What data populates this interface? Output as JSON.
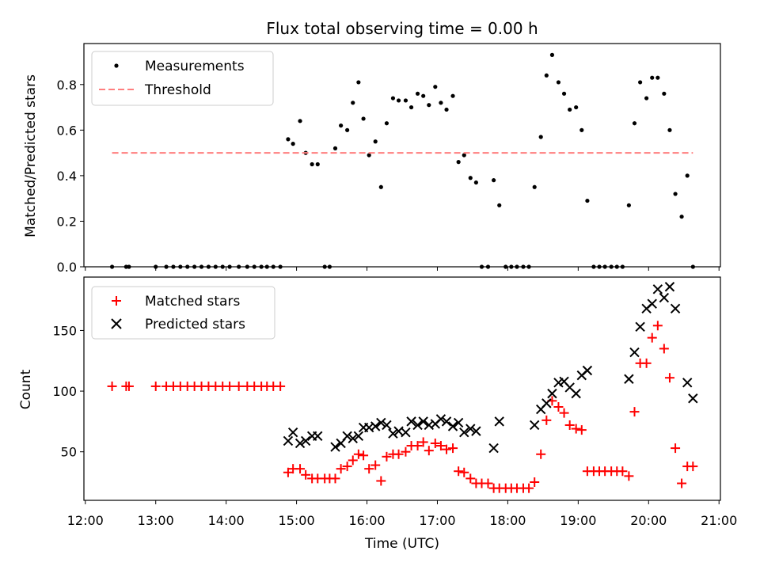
{
  "figure": {
    "title": "Flux total observing time = 0.00 h",
    "xlabel": "Time (UTC)",
    "xticks": [
      "12:00",
      "13:00",
      "14:00",
      "15:00",
      "16:00",
      "17:00",
      "18:00",
      "19:00",
      "20:00",
      "21:00"
    ]
  },
  "chart_data": [
    {
      "type": "scatter",
      "ylabel": "Matched/Predicted stars",
      "xlim": [
        11.98,
        21.02
      ],
      "ylim": [
        0,
        0.98
      ],
      "yticks": [
        "0.0",
        "0.2",
        "0.4",
        "0.6",
        "0.8"
      ],
      "legend_position": "top-left",
      "series": [
        {
          "name": "Measurements",
          "marker": "dot",
          "color": "#000000",
          "points": [
            [
              12.38,
              0
            ],
            [
              12.58,
              0
            ],
            [
              12.62,
              0
            ],
            [
              13.0,
              0
            ],
            [
              13.15,
              0
            ],
            [
              13.25,
              0
            ],
            [
              13.35,
              0
            ],
            [
              13.45,
              0
            ],
            [
              13.55,
              0
            ],
            [
              13.65,
              0
            ],
            [
              13.75,
              0
            ],
            [
              13.85,
              0
            ],
            [
              13.95,
              0
            ],
            [
              14.05,
              0
            ],
            [
              14.18,
              0
            ],
            [
              14.3,
              0
            ],
            [
              14.4,
              0
            ],
            [
              14.5,
              0
            ],
            [
              14.58,
              0
            ],
            [
              14.67,
              0
            ],
            [
              14.77,
              0
            ],
            [
              14.88,
              0.56
            ],
            [
              14.95,
              0.54
            ],
            [
              15.05,
              0.64
            ],
            [
              15.13,
              0.5
            ],
            [
              15.22,
              0.45
            ],
            [
              15.3,
              0.45
            ],
            [
              15.4,
              0
            ],
            [
              15.47,
              0
            ],
            [
              15.55,
              0.52
            ],
            [
              15.63,
              0.62
            ],
            [
              15.72,
              0.6
            ],
            [
              15.8,
              0.72
            ],
            [
              15.88,
              0.81
            ],
            [
              15.95,
              0.65
            ],
            [
              16.03,
              0.49
            ],
            [
              16.12,
              0.55
            ],
            [
              16.2,
              0.35
            ],
            [
              16.28,
              0.63
            ],
            [
              16.37,
              0.74
            ],
            [
              16.45,
              0.73
            ],
            [
              16.55,
              0.73
            ],
            [
              16.63,
              0.7
            ],
            [
              16.72,
              0.76
            ],
            [
              16.8,
              0.75
            ],
            [
              16.88,
              0.71
            ],
            [
              16.97,
              0.79
            ],
            [
              17.05,
              0.72
            ],
            [
              17.13,
              0.69
            ],
            [
              17.22,
              0.75
            ],
            [
              17.3,
              0.46
            ],
            [
              17.38,
              0.49
            ],
            [
              17.47,
              0.39
            ],
            [
              17.55,
              0.37
            ],
            [
              17.63,
              0
            ],
            [
              17.72,
              0
            ],
            [
              17.8,
              0.38
            ],
            [
              17.88,
              0.27
            ],
            [
              17.97,
              0
            ],
            [
              18.05,
              0
            ],
            [
              18.13,
              0
            ],
            [
              18.22,
              0
            ],
            [
              18.3,
              0
            ],
            [
              18.38,
              0.35
            ],
            [
              18.47,
              0.57
            ],
            [
              18.55,
              0.84
            ],
            [
              18.63,
              0.93
            ],
            [
              18.72,
              0.81
            ],
            [
              18.8,
              0.76
            ],
            [
              18.88,
              0.69
            ],
            [
              18.97,
              0.7
            ],
            [
              19.05,
              0.6
            ],
            [
              19.13,
              0.29
            ],
            [
              19.22,
              0
            ],
            [
              19.3,
              0
            ],
            [
              19.38,
              0
            ],
            [
              19.47,
              0
            ],
            [
              19.55,
              0
            ],
            [
              19.63,
              0
            ],
            [
              19.72,
              0.27
            ],
            [
              19.8,
              0.63
            ],
            [
              19.88,
              0.81
            ],
            [
              19.97,
              0.74
            ],
            [
              20.05,
              0.83
            ],
            [
              20.13,
              0.83
            ],
            [
              20.22,
              0.76
            ],
            [
              20.3,
              0.6
            ],
            [
              20.38,
              0.32
            ],
            [
              20.47,
              0.22
            ],
            [
              20.55,
              0.4
            ],
            [
              20.63,
              0
            ]
          ]
        },
        {
          "name": "Threshold",
          "marker": "dashed-line",
          "color": "#ff7f7f",
          "points": [
            [
              12.38,
              0.5
            ],
            [
              20.63,
              0.5
            ]
          ]
        }
      ]
    },
    {
      "type": "scatter",
      "ylabel": "Count",
      "xlim": [
        11.98,
        21.02
      ],
      "ylim": [
        10,
        194
      ],
      "yticks": [
        "50",
        "100",
        "150"
      ],
      "legend_position": "top-left",
      "series": [
        {
          "name": "Matched stars",
          "marker": "plus",
          "color": "#ff0000",
          "points": [
            [
              12.38,
              104
            ],
            [
              12.58,
              104
            ],
            [
              12.62,
              104
            ],
            [
              13.0,
              104
            ],
            [
              13.15,
              104
            ],
            [
              13.25,
              104
            ],
            [
              13.35,
              104
            ],
            [
              13.45,
              104
            ],
            [
              13.55,
              104
            ],
            [
              13.65,
              104
            ],
            [
              13.75,
              104
            ],
            [
              13.85,
              104
            ],
            [
              13.95,
              104
            ],
            [
              14.05,
              104
            ],
            [
              14.18,
              104
            ],
            [
              14.3,
              104
            ],
            [
              14.4,
              104
            ],
            [
              14.5,
              104
            ],
            [
              14.58,
              104
            ],
            [
              14.67,
              104
            ],
            [
              14.77,
              104
            ],
            [
              14.88,
              33
            ],
            [
              14.95,
              36
            ],
            [
              15.05,
              36
            ],
            [
              15.13,
              31
            ],
            [
              15.22,
              28
            ],
            [
              15.3,
              28
            ],
            [
              15.4,
              28
            ],
            [
              15.47,
              28
            ],
            [
              15.55,
              28
            ],
            [
              15.63,
              36
            ],
            [
              15.72,
              38
            ],
            [
              15.8,
              43
            ],
            [
              15.88,
              48
            ],
            [
              15.95,
              47
            ],
            [
              16.03,
              36
            ],
            [
              16.12,
              39
            ],
            [
              16.2,
              26
            ],
            [
              16.28,
              46
            ],
            [
              16.37,
              48
            ],
            [
              16.45,
              48
            ],
            [
              16.55,
              50
            ],
            [
              16.63,
              55
            ],
            [
              16.72,
              55
            ],
            [
              16.8,
              58
            ],
            [
              16.88,
              51
            ],
            [
              16.97,
              57
            ],
            [
              17.05,
              55
            ],
            [
              17.13,
              52
            ],
            [
              17.22,
              53
            ],
            [
              17.3,
              34
            ],
            [
              17.38,
              33
            ],
            [
              17.47,
              28
            ],
            [
              17.55,
              24
            ],
            [
              17.63,
              24
            ],
            [
              17.72,
              24
            ],
            [
              17.8,
              20
            ],
            [
              17.88,
              20
            ],
            [
              17.97,
              20
            ],
            [
              18.05,
              20
            ],
            [
              18.13,
              20
            ],
            [
              18.22,
              20
            ],
            [
              18.3,
              20
            ],
            [
              18.38,
              25
            ],
            [
              18.47,
              48
            ],
            [
              18.55,
              76
            ],
            [
              18.63,
              92
            ],
            [
              18.72,
              87
            ],
            [
              18.8,
              82
            ],
            [
              18.88,
              72
            ],
            [
              18.97,
              69
            ],
            [
              19.05,
              68
            ],
            [
              19.13,
              34
            ],
            [
              19.22,
              34
            ],
            [
              19.3,
              34
            ],
            [
              19.38,
              34
            ],
            [
              19.47,
              34
            ],
            [
              19.55,
              34
            ],
            [
              19.63,
              34
            ],
            [
              19.72,
              30
            ],
            [
              19.8,
              83
            ],
            [
              19.88,
              123
            ],
            [
              19.97,
              123
            ],
            [
              20.05,
              144
            ],
            [
              20.13,
              154
            ],
            [
              20.22,
              135
            ],
            [
              20.3,
              111
            ],
            [
              20.38,
              53
            ],
            [
              20.47,
              24
            ],
            [
              20.55,
              38
            ],
            [
              20.63,
              38
            ]
          ]
        },
        {
          "name": "Predicted stars",
          "marker": "x",
          "color": "#000000",
          "points": [
            [
              14.88,
              59
            ],
            [
              14.95,
              66
            ],
            [
              15.05,
              57
            ],
            [
              15.13,
              59
            ],
            [
              15.22,
              63
            ],
            [
              15.3,
              63
            ],
            [
              15.55,
              54
            ],
            [
              15.63,
              57
            ],
            [
              15.72,
              63
            ],
            [
              15.8,
              61
            ],
            [
              15.88,
              63
            ],
            [
              15.95,
              70
            ],
            [
              16.03,
              70
            ],
            [
              16.12,
              71
            ],
            [
              16.2,
              74
            ],
            [
              16.28,
              72
            ],
            [
              16.37,
              65
            ],
            [
              16.45,
              67
            ],
            [
              16.55,
              66
            ],
            [
              16.63,
              75
            ],
            [
              16.72,
              72
            ],
            [
              16.8,
              75
            ],
            [
              16.88,
              72
            ],
            [
              16.97,
              73
            ],
            [
              17.05,
              77
            ],
            [
              17.13,
              75
            ],
            [
              17.22,
              71
            ],
            [
              17.3,
              74
            ],
            [
              17.38,
              66
            ],
            [
              17.47,
              69
            ],
            [
              17.55,
              67
            ],
            [
              17.8,
              53
            ],
            [
              17.88,
              75
            ],
            [
              18.38,
              72
            ],
            [
              18.47,
              85
            ],
            [
              18.55,
              90
            ],
            [
              18.63,
              98
            ],
            [
              18.72,
              107
            ],
            [
              18.8,
              108
            ],
            [
              18.88,
              103
            ],
            [
              18.97,
              98
            ],
            [
              19.05,
              113
            ],
            [
              19.13,
              117
            ],
            [
              19.72,
              110
            ],
            [
              19.8,
              132
            ],
            [
              19.88,
              153
            ],
            [
              19.97,
              168
            ],
            [
              20.05,
              172
            ],
            [
              20.13,
              184
            ],
            [
              20.22,
              177
            ],
            [
              20.3,
              186
            ],
            [
              20.38,
              168
            ],
            [
              20.55,
              107
            ],
            [
              20.63,
              94
            ]
          ]
        }
      ]
    }
  ]
}
